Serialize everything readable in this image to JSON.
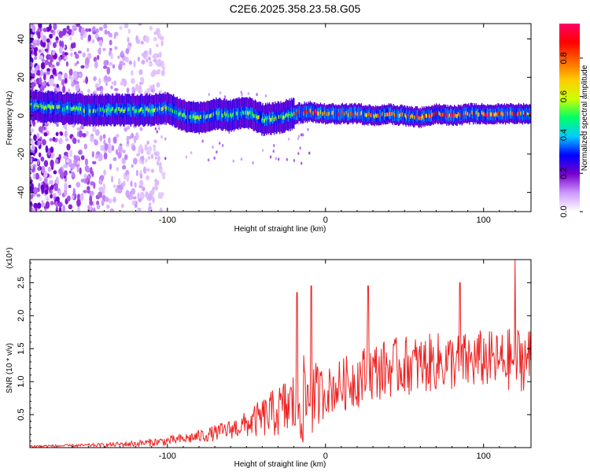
{
  "page_title": "C2E6.2025.358.23.58.G05",
  "chart_data": [
    {
      "type": "heatmap",
      "title": "C2E6.2025.358.23.58.G05",
      "xlabel": "Height of straight line (km)",
      "ylabel": "Frequency (Hz)",
      "xlim": [
        -187,
        130
      ],
      "ylim": [
        -50,
        48
      ],
      "xticks": [
        -100,
        0,
        100
      ],
      "yticks": [
        -40,
        -20,
        0,
        20,
        40
      ],
      "colorbar": {
        "label": "Normalized spectral amplitude",
        "range": [
          0,
          0.98
        ],
        "ticks": [
          "0.0",
          "0.2",
          "0.4",
          "0.6",
          "0.8"
        ],
        "colors": [
          "#ffffff",
          "#cc99ff",
          "#7700cc",
          "#0000ff",
          "#00ccff",
          "#00ff66",
          "#ccff00",
          "#ffcc00",
          "#ff6600",
          "#ff0000",
          "#ff0066"
        ]
      },
      "description_band": "Frequency ridge near 0-5 Hz spanning full height range; scattered noise above and below for heights below -110 km",
      "ridge": {
        "x": [
          -185,
          -170,
          -150,
          -130,
          -110,
          -100,
          -90,
          -80,
          -70,
          -60,
          -50,
          -40,
          -30,
          -20,
          -10,
          0,
          10,
          20,
          30,
          40,
          50,
          60,
          70,
          80,
          90,
          100,
          110,
          120,
          130
        ],
        "freq": [
          5,
          4,
          3,
          3,
          3,
          4,
          0,
          -1,
          1,
          0,
          2,
          -2,
          -1,
          1,
          2,
          1,
          1,
          1,
          0,
          1,
          0,
          -1,
          1,
          0,
          1,
          1,
          1,
          1,
          1
        ]
      }
    },
    {
      "type": "line",
      "xlabel": "Height of straight line (km)",
      "ylabel": "SNR (10 * v/v)",
      "scale_label": "(x10⁴)",
      "xlim": [
        -187,
        130
      ],
      "ylim": [
        0,
        2.85
      ],
      "xticks": [
        -100,
        0,
        100
      ],
      "yticks": [
        0.5,
        1.0,
        1.5,
        2.0,
        2.5
      ],
      "ytick_labels": [
        "0.5",
        "1.0",
        "1.5",
        "2.0",
        "2.5"
      ],
      "color": "#ee2222",
      "envelope": {
        "x": [
          -187,
          -160,
          -140,
          -120,
          -100,
          -90,
          -80,
          -70,
          -60,
          -50,
          -40,
          -30,
          -20,
          -15,
          -10,
          -5,
          0,
          10,
          20,
          30,
          40,
          50,
          60,
          70,
          80,
          90,
          100,
          110,
          120,
          130
        ],
        "mean": [
          0.02,
          0.03,
          0.04,
          0.06,
          0.1,
          0.13,
          0.17,
          0.22,
          0.28,
          0.35,
          0.45,
          0.55,
          0.65,
          0.7,
          0.75,
          0.78,
          0.85,
          0.95,
          1.05,
          1.15,
          1.2,
          1.25,
          1.25,
          1.3,
          1.3,
          1.3,
          1.35,
          1.3,
          1.35,
          1.35
        ],
        "amp": [
          0.02,
          0.02,
          0.03,
          0.05,
          0.07,
          0.08,
          0.1,
          0.12,
          0.15,
          0.2,
          0.3,
          0.4,
          0.55,
          0.7,
          0.65,
          0.5,
          0.35,
          0.4,
          0.45,
          0.45,
          0.45,
          0.45,
          0.45,
          0.45,
          0.45,
          0.45,
          0.45,
          0.45,
          0.5,
          0.5
        ]
      },
      "peaks": [
        {
          "x": -18,
          "y": 2.35
        },
        {
          "x": -9,
          "y": 2.45
        },
        {
          "x": 27,
          "y": 2.45
        },
        {
          "x": 85,
          "y": 2.5
        },
        {
          "x": 120,
          "y": 2.85
        }
      ]
    }
  ]
}
